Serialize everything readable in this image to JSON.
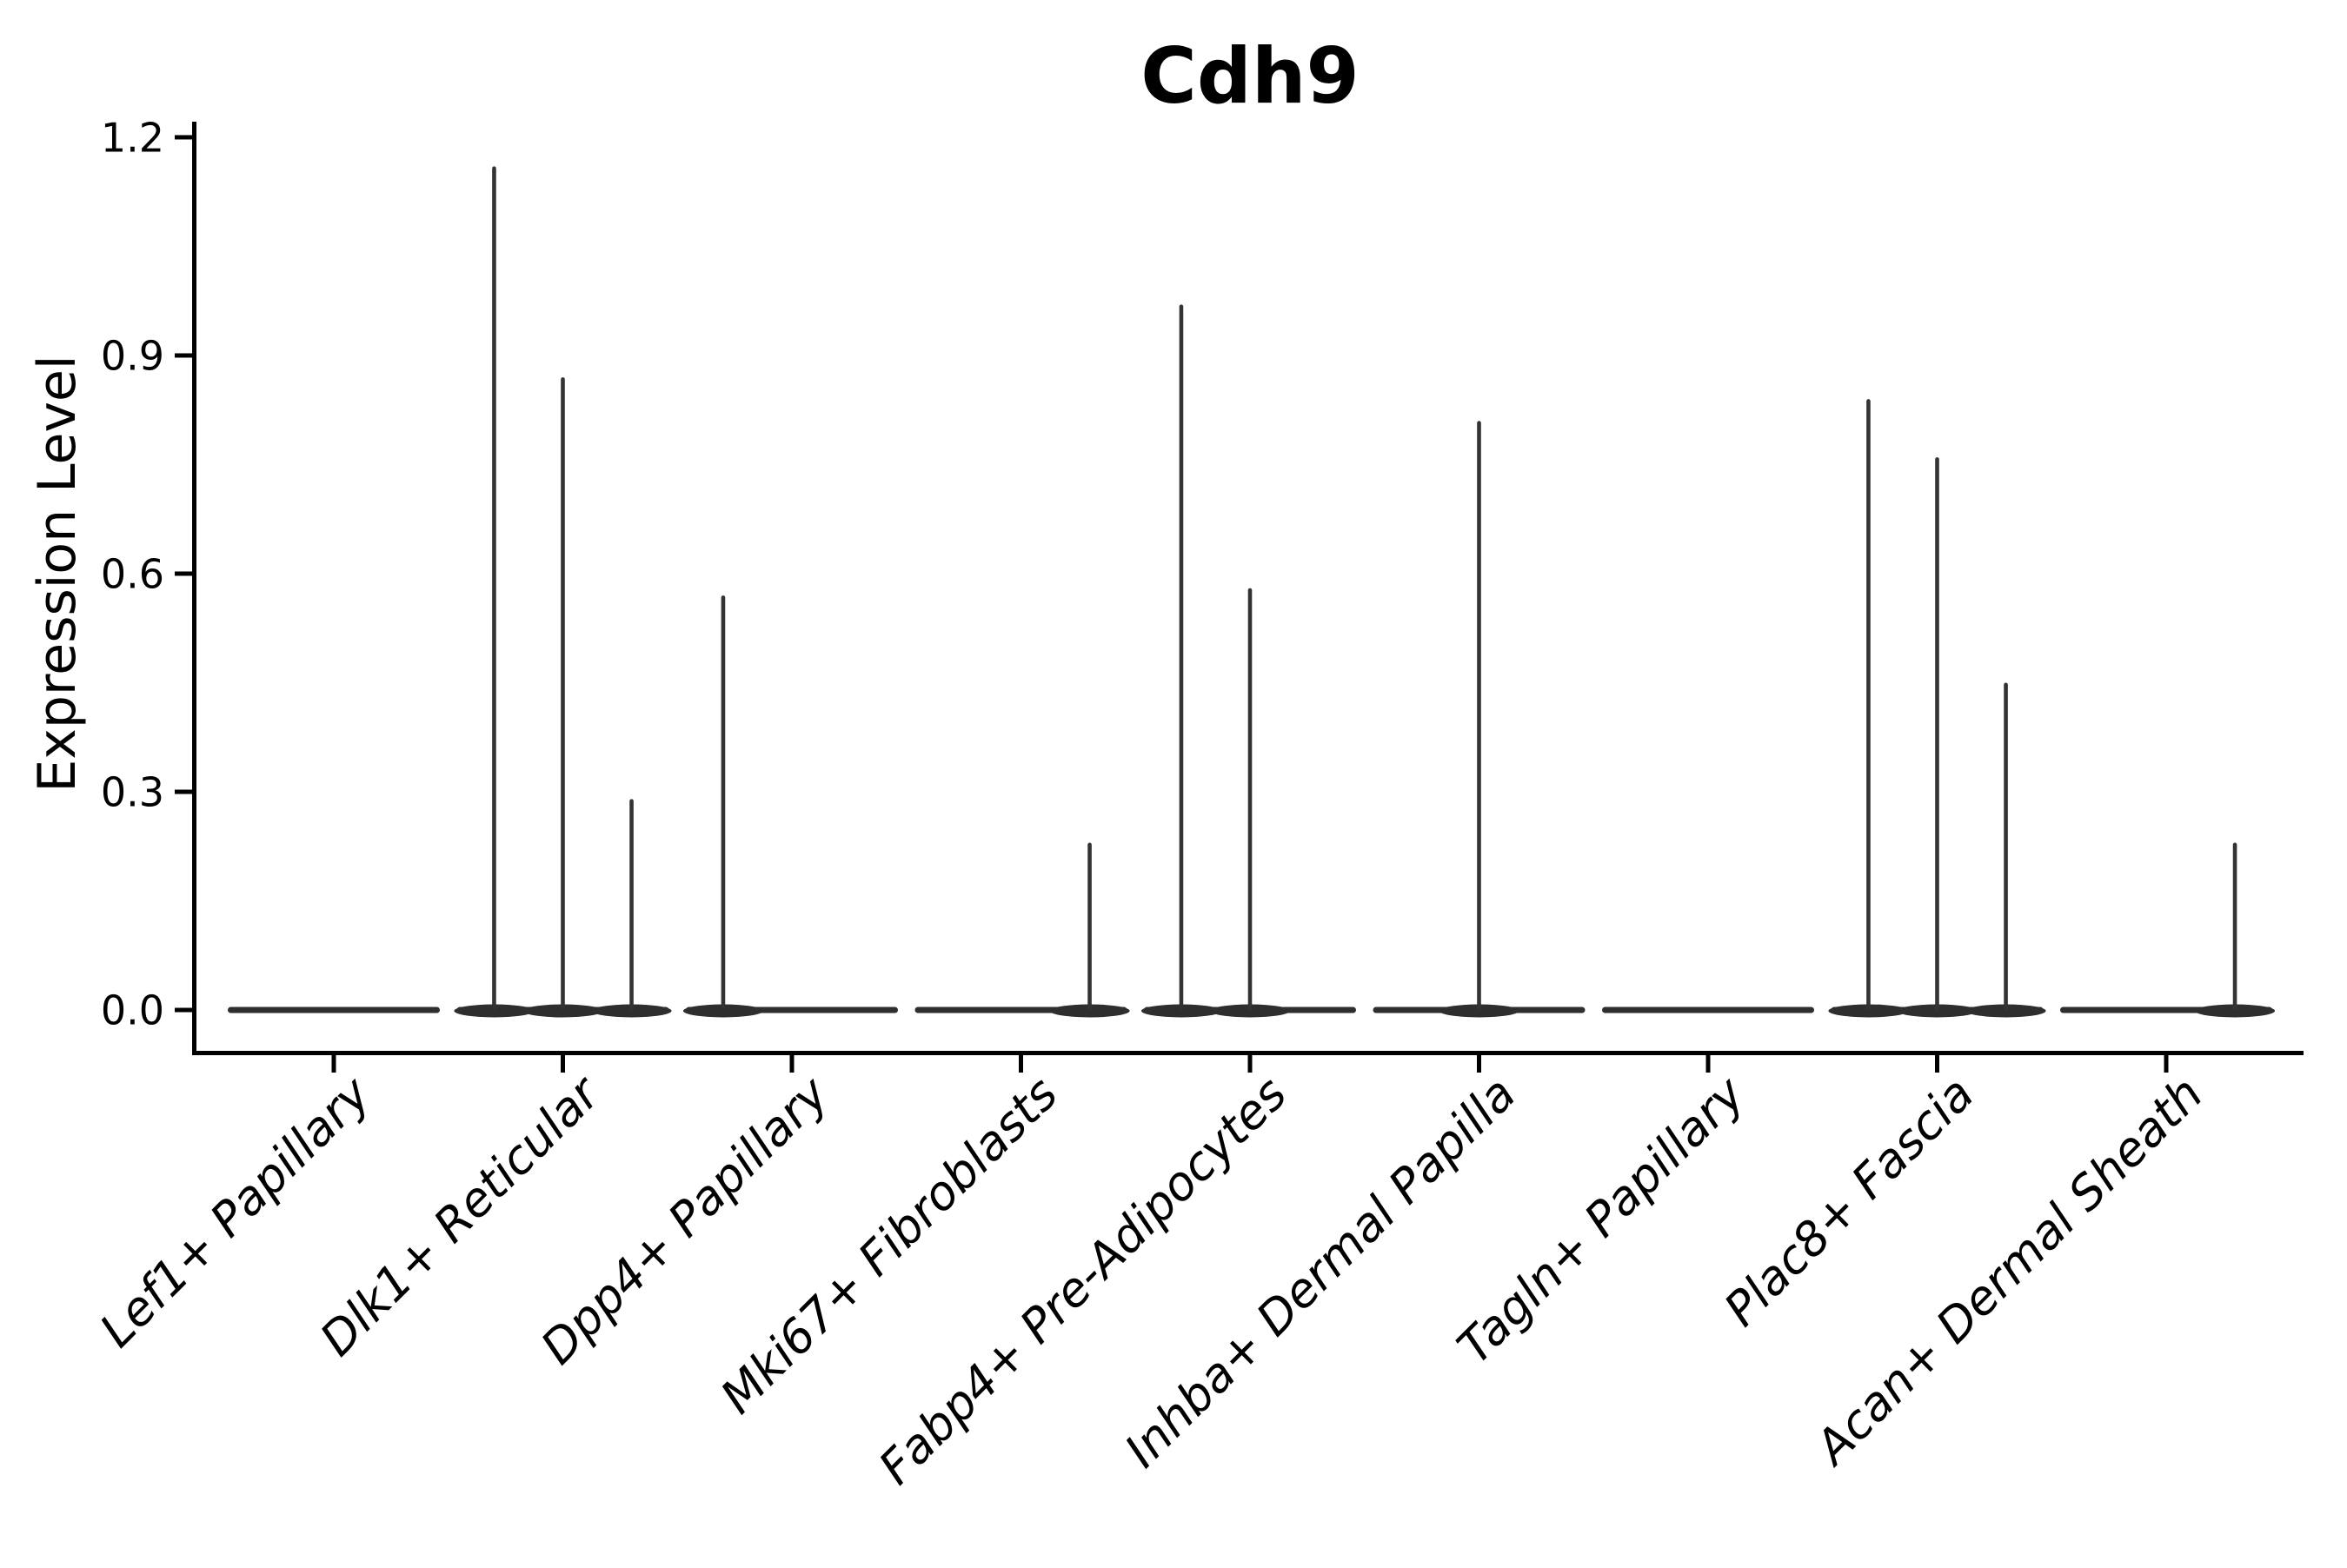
{
  "header": {
    "title": "Cdh9"
  },
  "axes": {
    "ylabel": "Expression Level",
    "yticks": [
      "0.0",
      "0.3",
      "0.6",
      "0.9",
      "1.2"
    ],
    "ytick_values": [
      0.0,
      0.3,
      0.6,
      0.9,
      1.2
    ],
    "ylim": [
      -0.06,
      1.22
    ],
    "xlabel_rotation_deg": 45,
    "xlabel_style": "italic"
  },
  "colors": {
    "violin": "#333333",
    "violin_base": "#2e2e2e",
    "axis": "#000000",
    "text": "#000000",
    "background": "#ffffff"
  },
  "chart_data": {
    "type": "violin",
    "title": "Cdh9",
    "ylabel": "Expression Level",
    "xlabel": "",
    "ylim": [
      -0.06,
      1.22
    ],
    "yticks": [
      0.0,
      0.3,
      0.6,
      0.9,
      1.2
    ],
    "grid": false,
    "legend": "none",
    "categories": [
      "Lef1+ Papillary",
      "Dlk1+ Reticular",
      "Dpp4+ Papillary",
      "Mki67+ Fibroblasts",
      "Fabp4+ Pre-Adipocytes",
      "Inhba+ Dermal Papilla",
      "Tagln+ Papillary",
      "Plac8+ Fascia",
      "Acan+ Dermal Sheath"
    ],
    "description": "Each category shows a flat violin at expression 0 (most cells zero). Thin density needles rise to the listed expression values at horizontal offsets (in category-width units) from the category center.",
    "violins": [
      {
        "category": "Lef1+ Papillary",
        "base_halfwidth": 0.46,
        "needles": []
      },
      {
        "category": "Dlk1+ Reticular",
        "base_halfwidth": 0.46,
        "needles": [
          {
            "offset": -0.3,
            "value": 1.16
          },
          {
            "offset": 0.0,
            "value": 0.87
          },
          {
            "offset": 0.3,
            "value": 0.29
          }
        ]
      },
      {
        "category": "Dpp4+ Papillary",
        "base_halfwidth": 0.46,
        "needles": [
          {
            "offset": -0.3,
            "value": 0.57
          }
        ]
      },
      {
        "category": "Mki67+ Fibroblasts",
        "base_halfwidth": 0.46,
        "needles": [
          {
            "offset": 0.3,
            "value": 0.23
          }
        ]
      },
      {
        "category": "Fabp4+ Pre-Adipocytes",
        "base_halfwidth": 0.46,
        "needles": [
          {
            "offset": -0.3,
            "value": 0.97
          },
          {
            "offset": 0.0,
            "value": 0.58
          }
        ]
      },
      {
        "category": "Inhba+ Dermal Papilla",
        "base_halfwidth": 0.46,
        "needles": [
          {
            "offset": 0.0,
            "value": 0.81
          }
        ]
      },
      {
        "category": "Tagln+ Papillary",
        "base_halfwidth": 0.46,
        "needles": []
      },
      {
        "category": "Plac8+ Fascia",
        "base_halfwidth": 0.46,
        "needles": [
          {
            "offset": -0.3,
            "value": 0.84
          },
          {
            "offset": 0.0,
            "value": 0.76
          },
          {
            "offset": 0.3,
            "value": 0.45
          }
        ]
      },
      {
        "category": "Acan+ Dermal Sheath",
        "base_halfwidth": 0.46,
        "needles": [
          {
            "offset": 0.3,
            "value": 0.23
          }
        ]
      }
    ]
  }
}
